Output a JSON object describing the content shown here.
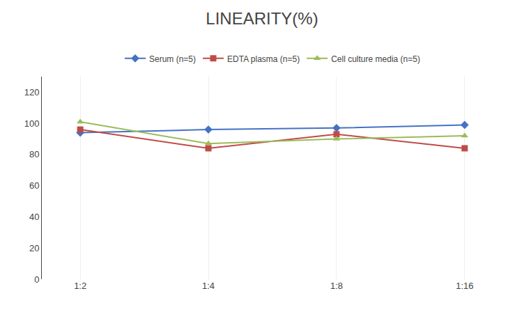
{
  "chart_data": {
    "type": "line",
    "title": "LINEARITY(%)",
    "categories": [
      "1:2",
      "1:4",
      "1:8",
      "1:16"
    ],
    "series": [
      {
        "name": "Serum (n=5)",
        "color": "#4472C4",
        "marker": "diamond",
        "values": [
          94,
          96,
          97,
          99
        ]
      },
      {
        "name": "EDTA plasma (n=5)",
        "color": "#BE4B48",
        "marker": "square",
        "values": [
          96,
          84,
          93,
          84
        ]
      },
      {
        "name": "Cell culture media (n=5)",
        "color": "#9BBB59",
        "marker": "triangle-up",
        "values": [
          101,
          87,
          90,
          92
        ]
      }
    ],
    "ylim": [
      0,
      130
    ],
    "yticks": [
      0,
      20,
      40,
      60,
      80,
      100,
      120
    ],
    "grid": "x",
    "legend": "top"
  }
}
